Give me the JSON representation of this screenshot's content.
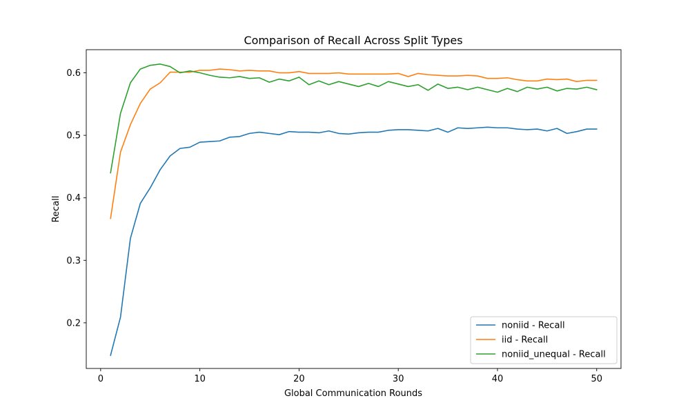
{
  "chart_data": {
    "type": "line",
    "title": "Comparison of Recall Across Split Types",
    "xlabel": "Global Communication Rounds",
    "ylabel": "Recall",
    "xlim": [
      -1.45,
      52.45
    ],
    "ylim": [
      0.127,
      0.637
    ],
    "xticks": [
      0,
      10,
      20,
      30,
      40,
      50
    ],
    "yticks": [
      0.2,
      0.3,
      0.4,
      0.5,
      0.6
    ],
    "ytick_labels": [
      "0.2",
      "0.3",
      "0.4",
      "0.5",
      "0.6"
    ],
    "grid": false,
    "legend_position": "lower right",
    "x": [
      1,
      2,
      3,
      4,
      5,
      6,
      7,
      8,
      9,
      10,
      11,
      12,
      13,
      14,
      15,
      16,
      17,
      18,
      19,
      20,
      21,
      22,
      23,
      24,
      25,
      26,
      27,
      28,
      29,
      30,
      31,
      32,
      33,
      34,
      35,
      36,
      37,
      38,
      39,
      40,
      41,
      42,
      43,
      44,
      45,
      46,
      47,
      48,
      49,
      50
    ],
    "series": [
      {
        "name": "noniid - Recall",
        "color": "#1f77b4",
        "values": [
          0.148,
          0.209,
          0.335,
          0.391,
          0.416,
          0.445,
          0.467,
          0.479,
          0.481,
          0.489,
          0.49,
          0.491,
          0.497,
          0.498,
          0.503,
          0.505,
          0.503,
          0.501,
          0.506,
          0.505,
          0.505,
          0.504,
          0.507,
          0.503,
          0.502,
          0.504,
          0.505,
          0.505,
          0.508,
          0.509,
          0.509,
          0.508,
          0.507,
          0.511,
          0.505,
          0.512,
          0.511,
          0.512,
          0.513,
          0.512,
          0.512,
          0.51,
          0.509,
          0.51,
          0.507,
          0.511,
          0.503,
          0.506,
          0.51,
          0.51
        ]
      },
      {
        "name": "iid - Recall",
        "color": "#ff7f0e",
        "values": [
          0.367,
          0.473,
          0.517,
          0.551,
          0.574,
          0.584,
          0.601,
          0.601,
          0.601,
          0.604,
          0.604,
          0.606,
          0.605,
          0.603,
          0.604,
          0.603,
          0.603,
          0.6,
          0.6,
          0.602,
          0.599,
          0.599,
          0.599,
          0.6,
          0.598,
          0.598,
          0.598,
          0.598,
          0.598,
          0.599,
          0.594,
          0.599,
          0.597,
          0.596,
          0.595,
          0.595,
          0.596,
          0.595,
          0.591,
          0.591,
          0.592,
          0.589,
          0.587,
          0.587,
          0.59,
          0.589,
          0.59,
          0.586,
          0.588,
          0.588
        ]
      },
      {
        "name": "noniid_unequal - Recall",
        "color": "#2ca02c",
        "values": [
          0.44,
          0.535,
          0.584,
          0.606,
          0.612,
          0.614,
          0.61,
          0.6,
          0.603,
          0.6,
          0.596,
          0.593,
          0.592,
          0.594,
          0.591,
          0.592,
          0.585,
          0.59,
          0.587,
          0.593,
          0.581,
          0.587,
          0.581,
          0.586,
          0.582,
          0.578,
          0.583,
          0.578,
          0.586,
          0.582,
          0.578,
          0.581,
          0.572,
          0.582,
          0.575,
          0.577,
          0.573,
          0.577,
          0.573,
          0.569,
          0.575,
          0.57,
          0.577,
          0.574,
          0.577,
          0.571,
          0.575,
          0.574,
          0.577,
          0.573
        ]
      }
    ]
  }
}
